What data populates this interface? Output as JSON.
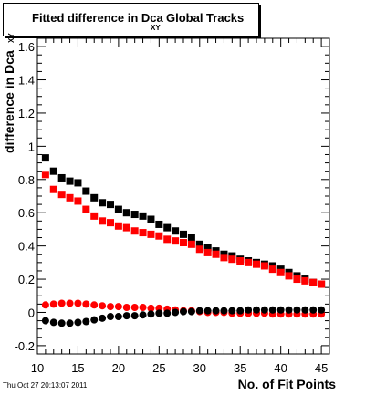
{
  "title": {
    "main": "Fitted difference in Dca",
    "subscript": "XY",
    "tail": "Global Tracks"
  },
  "timestamp": "Thu Oct 27 20:13:07 2011",
  "chart_data": {
    "type": "scatter",
    "xlabel": "No. of Fit Points",
    "ylabel": "difference in Dca",
    "ylabel_subscript": "XY",
    "xlim": [
      10,
      46
    ],
    "ylim": [
      -0.25,
      1.65
    ],
    "x_ticks": [
      "10",
      "15",
      "20",
      "25",
      "30",
      "35",
      "40",
      "45"
    ],
    "y_ticks": [
      "-0.2",
      "0",
      "0.2",
      "0.4",
      "0.6",
      "0.8",
      "1",
      "1.2",
      "1.4",
      "1.6"
    ],
    "x": [
      11,
      12,
      13,
      14,
      15,
      16,
      17,
      18,
      19,
      20,
      21,
      22,
      23,
      24,
      25,
      26,
      27,
      28,
      29,
      30,
      31,
      32,
      33,
      34,
      35,
      36,
      37,
      38,
      39,
      40,
      41,
      42,
      43,
      44,
      45
    ],
    "series": [
      {
        "marker": "square",
        "color": "#000000",
        "values": [
          0.93,
          0.85,
          0.81,
          0.79,
          0.78,
          0.73,
          0.69,
          0.66,
          0.65,
          0.62,
          0.6,
          0.59,
          0.58,
          0.56,
          0.53,
          0.51,
          0.49,
          0.47,
          0.45,
          0.41,
          0.39,
          0.37,
          0.35,
          0.34,
          0.32,
          0.31,
          0.3,
          0.29,
          0.28,
          0.26,
          0.24,
          0.22,
          0.2,
          0.18,
          0.17
        ]
      },
      {
        "marker": "square",
        "color": "#ff0000",
        "values": [
          0.83,
          0.74,
          0.71,
          0.69,
          0.67,
          0.62,
          0.58,
          0.55,
          0.54,
          0.52,
          0.51,
          0.49,
          0.48,
          0.47,
          0.46,
          0.44,
          0.43,
          0.42,
          0.41,
          0.38,
          0.36,
          0.35,
          0.33,
          0.32,
          0.31,
          0.3,
          0.29,
          0.28,
          0.26,
          0.24,
          0.22,
          0.2,
          0.19,
          0.18,
          0.17
        ]
      },
      {
        "marker": "circle",
        "color": "#ff0000",
        "values": [
          0.045,
          0.05,
          0.055,
          0.055,
          0.055,
          0.05,
          0.045,
          0.04,
          0.035,
          0.035,
          0.03,
          0.03,
          0.03,
          0.025,
          0.025,
          0.02,
          0.015,
          0.01,
          0.01,
          0.005,
          0.0,
          0.0,
          0.0,
          -0.005,
          -0.005,
          -0.005,
          -0.005,
          -0.005,
          -0.01,
          -0.01,
          -0.01,
          -0.01,
          -0.01,
          -0.01,
          -0.01
        ]
      },
      {
        "marker": "circle",
        "color": "#000000",
        "values": [
          -0.05,
          -0.06,
          -0.065,
          -0.065,
          -0.06,
          -0.055,
          -0.045,
          -0.035,
          -0.025,
          -0.025,
          -0.02,
          -0.02,
          -0.015,
          -0.01,
          -0.005,
          -0.005,
          0.0,
          0.005,
          0.005,
          0.01,
          0.01,
          0.01,
          0.01,
          0.01,
          0.01,
          0.015,
          0.015,
          0.015,
          0.015,
          0.015,
          0.015,
          0.015,
          0.015,
          0.015,
          0.015
        ]
      }
    ]
  }
}
